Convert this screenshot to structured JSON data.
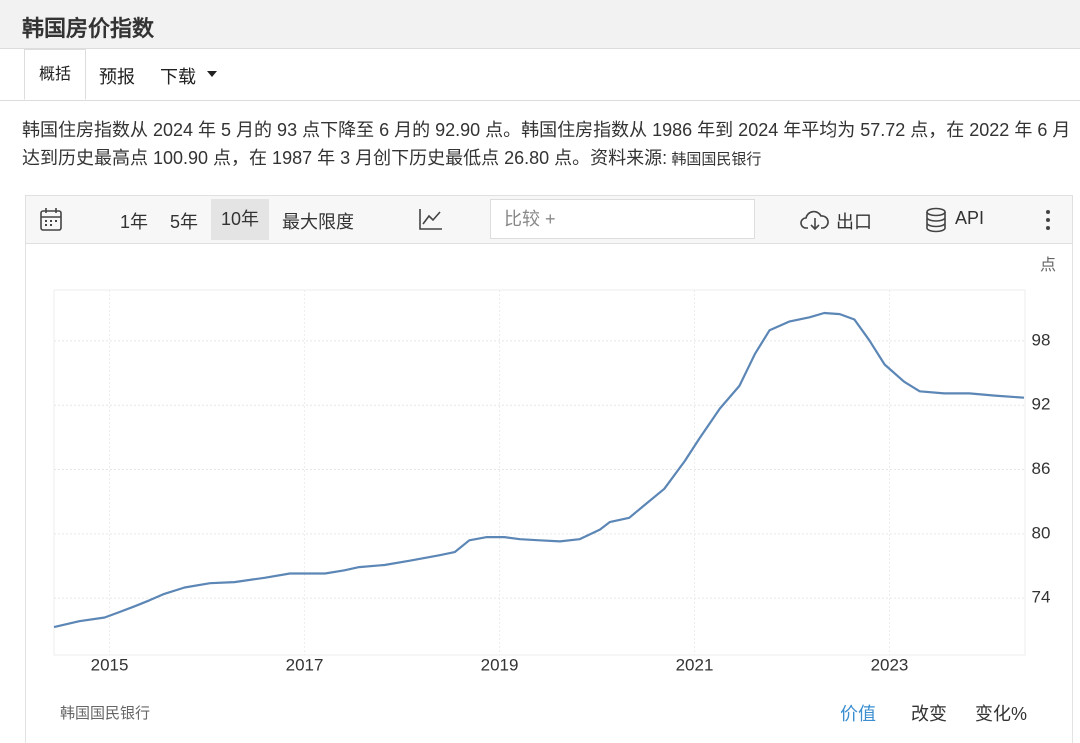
{
  "header": {
    "title": "韩国房价指数"
  },
  "tabs": [
    "概括",
    "预报",
    "下载"
  ],
  "description": "韩国住房指数从 2024 年 5 月的 93 点下降至 6 月的 92.90 点。韩国住房指数从 1986 年到 2024 年平均为 57.72 点，在 2022 年 6 月达到历史最高点 100.90 点，在 1987 年 3 月创下历史最低点 26.80 点。",
  "source_label": "资料来源:",
  "source": "韩国国民银行",
  "toolbar": {
    "ranges": [
      "1年",
      "5年",
      "10年",
      "最大限度"
    ],
    "compare_placeholder": "比较 +",
    "export": "出口",
    "api": "API"
  },
  "chart_data": {
    "type": "line",
    "y_unit": "点",
    "color": "#5b86b5",
    "x": [
      2014.43,
      2014.69,
      2014.95,
      2015.1,
      2015.26,
      2015.41,
      2015.56,
      2015.77,
      2016.03,
      2016.28,
      2016.59,
      2016.85,
      2017.21,
      2017.41,
      2017.56,
      2017.82,
      2018.08,
      2018.38,
      2018.54,
      2018.69,
      2018.87,
      2019.05,
      2019.21,
      2019.41,
      2019.62,
      2019.82,
      2020.03,
      2020.13,
      2020.33,
      2020.49,
      2020.69,
      2020.9,
      2021.05,
      2021.26,
      2021.46,
      2021.62,
      2021.77,
      2021.97,
      2022.18,
      2022.33,
      2022.49,
      2022.64,
      2022.79,
      2022.95,
      2023.15,
      2023.31,
      2023.56,
      2023.82,
      2024.08,
      2024.38
    ],
    "values": [
      71.3,
      71.85,
      72.2,
      72.7,
      73.25,
      73.8,
      74.4,
      75.0,
      75.4,
      75.5,
      75.9,
      76.3,
      76.3,
      76.6,
      76.9,
      77.1,
      77.5,
      78.0,
      78.3,
      79.4,
      79.7,
      79.7,
      79.5,
      79.4,
      79.3,
      79.5,
      80.4,
      81.1,
      81.5,
      82.7,
      84.2,
      86.8,
      88.9,
      91.7,
      93.8,
      96.8,
      99.0,
      99.8,
      100.2,
      100.6,
      100.5,
      100.0,
      98.1,
      95.8,
      94.2,
      93.3,
      93.1,
      93.1,
      92.9,
      92.7
    ],
    "xlim": [
      2014.43,
      2024.39
    ],
    "xticks": [
      2015,
      2017,
      2019,
      2021,
      2023
    ],
    "ylim": [
      68.7,
      102.75
    ],
    "yticks": [
      74,
      80,
      86,
      92,
      98
    ],
    "grid": true
  },
  "footer": {
    "source": "韩国国民银行",
    "modes": [
      "价值",
      "改变",
      "变化%"
    ]
  }
}
